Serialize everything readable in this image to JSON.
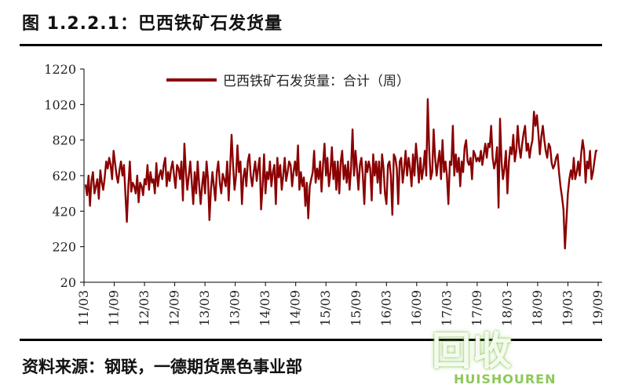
{
  "figure": {
    "title": "图 1.2.2.1：巴西铁矿石发货量",
    "source": "资料来源：钢联，一德期货黑色事业部"
  },
  "watermark": {
    "text": "回收",
    "subtext": "HUISHOUREN"
  },
  "colors": {
    "series": "#8b0000",
    "axis": "#000000",
    "text": "#222222"
  },
  "chart_data": {
    "type": "line",
    "title": "",
    "xlabel": "",
    "ylabel": "",
    "ylim": [
      20,
      1220
    ],
    "yticks": [
      20,
      220,
      420,
      620,
      820,
      1020,
      1220
    ],
    "x_start": "2011-03",
    "x_end": "2019-09",
    "xticks": [
      "11/03",
      "11/09",
      "12/03",
      "12/09",
      "13/03",
      "13/09",
      "14/03",
      "14/09",
      "15/03",
      "15/09",
      "16/03",
      "16/09",
      "17/03",
      "17/09",
      "18/03",
      "18/09",
      "19/03",
      "19/09"
    ],
    "legend": {
      "placement": "top-center"
    },
    "grid": false,
    "series": [
      {
        "name": "巴西铁矿石发货量：合计（周）",
        "values": [
          570,
          510,
          620,
          450,
          590,
          640,
          520,
          560,
          600,
          490,
          650,
          580,
          540,
          610,
          700,
          660,
          720,
          680,
          600,
          760,
          690,
          620,
          580,
          650,
          700,
          620,
          680,
          520,
          360,
          560,
          700,
          530,
          580,
          560,
          520,
          620,
          470,
          580,
          560,
          510,
          600,
          570,
          680,
          540,
          640,
          580,
          600,
          520,
          690,
          560,
          620,
          650,
          600,
          680,
          720,
          560,
          640,
          590,
          660,
          700,
          620,
          550,
          680,
          660,
          600,
          700,
          480,
          800,
          640,
          540,
          620,
          700,
          580,
          460,
          640,
          520,
          700,
          570,
          460,
          560,
          640,
          520,
          700,
          600,
          370,
          540,
          640,
          560,
          480,
          640,
          700,
          580,
          520,
          630,
          600,
          560,
          700,
          480,
          660,
          850,
          680,
          540,
          620,
          790,
          640,
          700,
          460,
          610,
          660,
          560,
          700,
          740,
          620,
          560,
          640,
          700,
          590,
          660,
          720,
          430,
          560,
          740,
          520,
          640,
          600,
          700,
          560,
          640,
          680,
          460,
          720,
          610,
          680,
          540,
          620,
          720,
          590,
          640,
          700,
          680,
          560,
          640,
          700,
          620,
          790,
          540,
          640,
          560,
          610,
          450,
          580,
          380,
          560,
          600,
          640,
          760,
          580,
          660,
          600,
          700,
          530,
          680,
          800,
          620,
          720,
          560,
          640,
          780,
          600,
          700,
          540,
          700,
          520,
          700,
          760,
          600,
          680,
          580,
          700,
          540,
          660,
          880,
          620,
          760,
          660,
          540,
          680,
          720,
          620,
          460,
          700,
          640,
          700,
          660,
          480,
          740,
          620,
          700,
          580,
          700,
          520,
          740,
          660,
          520,
          460,
          680,
          700,
          620,
          400,
          740,
          720,
          660,
          460,
          700,
          720,
          580,
          660,
          760,
          620,
          720,
          660,
          560,
          740,
          620,
          800,
          700,
          580,
          720,
          600,
          660,
          760,
          620,
          1050,
          760,
          600,
          640,
          880,
          720,
          620,
          700,
          760,
          600,
          820,
          640,
          700,
          620,
          460,
          700,
          680,
          900,
          620,
          740,
          640,
          720,
          560,
          700,
          640,
          780,
          820,
          700,
          680,
          720,
          600,
          760,
          740,
          700,
          720,
          700,
          760,
          680,
          740,
          800,
          720,
          800,
          780,
          900,
          720,
          660,
          700,
          780,
          440,
          940,
          700,
          600,
          660,
          760,
          520,
          700,
          780,
          740,
          850,
          700,
          760,
          900,
          780,
          720,
          800,
          860,
          900,
          760,
          800,
          720,
          780,
          820,
          980,
          900,
          960,
          860,
          740,
          840,
          900,
          820,
          760,
          720,
          800,
          780,
          690,
          660,
          680,
          720,
          740,
          640,
          560,
          500,
          430,
          210,
          360,
          520,
          600,
          650,
          600,
          720,
          600,
          640,
          700,
          620,
          740,
          820,
          760,
          580,
          700,
          660,
          760,
          600,
          640,
          700,
          760,
          760
        ]
      }
    ]
  }
}
